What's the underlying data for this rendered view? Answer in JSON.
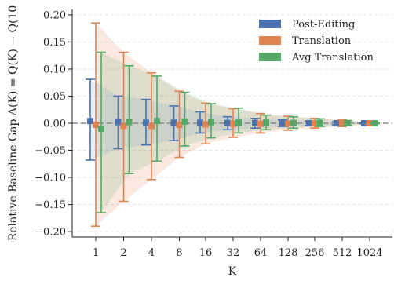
{
  "chart_data": {
    "type": "errorbar",
    "xlabel": "K",
    "ylabel": "Relative Baseline Gap  Δ(K) = Q(K) − Q(10",
    "categories": [
      "1",
      "2",
      "4",
      "8",
      "16",
      "32",
      "64",
      "128",
      "256",
      "512",
      "1024"
    ],
    "yticks": [
      "0.20",
      "0.15",
      "0.10",
      "0.05",
      "0.00",
      "−0.05",
      "−0.10",
      "−0.15",
      "−0.20"
    ],
    "ytick_values": [
      0.2,
      0.15,
      0.1,
      0.05,
      0.0,
      -0.05,
      -0.1,
      -0.15,
      -0.2
    ],
    "ylim": [
      -0.21,
      0.21
    ],
    "reference_line": 0.0,
    "grid": "horizontal dashed",
    "legend_position": "top-right",
    "series": [
      {
        "name": "Post-Editing",
        "color": "#4c72b0",
        "mean": [
          0.004,
          0.002,
          0.001,
          0.001,
          0.001,
          0.0005,
          0.0003,
          0.0002,
          0.0001,
          0.0001,
          0.0
        ],
        "lower": [
          -0.068,
          -0.047,
          -0.04,
          -0.032,
          -0.018,
          -0.012,
          -0.009,
          -0.006,
          -0.004,
          -0.003,
          -0.001
        ],
        "upper": [
          0.081,
          0.05,
          0.044,
          0.032,
          0.021,
          0.012,
          0.009,
          0.006,
          0.004,
          0.003,
          0.001
        ]
      },
      {
        "name": "Translation",
        "color": "#dd8452",
        "mean": [
          -0.003,
          -0.005,
          -0.005,
          -0.003,
          -0.002,
          -0.001,
          -0.001,
          -0.0005,
          -0.0003,
          -0.0002,
          0.0
        ],
        "lower": [
          -0.19,
          -0.144,
          -0.104,
          -0.063,
          -0.038,
          -0.026,
          -0.018,
          -0.013,
          -0.009,
          -0.006,
          -0.002
        ],
        "upper": [
          0.185,
          0.131,
          0.093,
          0.059,
          0.037,
          0.027,
          0.018,
          0.013,
          0.009,
          0.006,
          0.002
        ]
      },
      {
        "name": "Avg Translation",
        "color": "#55a868",
        "mean": [
          -0.01,
          0.002,
          0.004,
          0.003,
          0.002,
          0.001,
          0.001,
          0.0005,
          0.0003,
          0.0002,
          0.0
        ],
        "lower": [
          -0.165,
          -0.093,
          -0.07,
          -0.042,
          -0.027,
          -0.018,
          -0.012,
          -0.009,
          -0.006,
          -0.004,
          -0.001
        ],
        "upper": [
          0.131,
          0.106,
          0.087,
          0.057,
          0.036,
          0.028,
          0.015,
          0.012,
          0.008,
          0.005,
          0.001
        ]
      }
    ]
  }
}
